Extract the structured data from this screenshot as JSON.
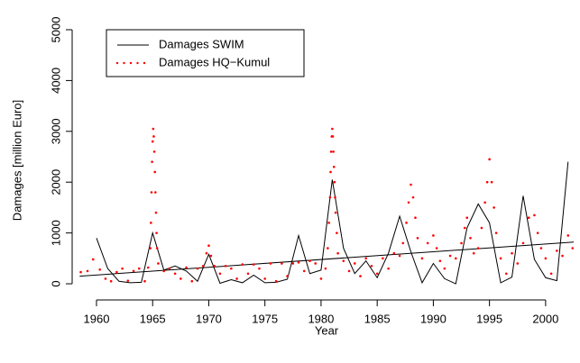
{
  "chart_data": {
    "type": "line",
    "xlabel": "Year",
    "ylabel": "Damages [million Euro]",
    "xlim": [
      1958.5,
      2002.5
    ],
    "ylim": [
      -150,
      5000
    ],
    "xticks": [
      1960,
      1965,
      1970,
      1975,
      1980,
      1985,
      1990,
      1995,
      2000
    ],
    "yticks": [
      0,
      1000,
      2000,
      3000,
      4000,
      5000
    ],
    "series": [
      {
        "name": "Damages SWIM",
        "color": "#000000",
        "style": "line",
        "x": [
          1960,
          1961,
          1962,
          1963,
          1964,
          1965,
          1966,
          1967,
          1968,
          1969,
          1970,
          1971,
          1972,
          1973,
          1974,
          1975,
          1976,
          1977,
          1978,
          1979,
          1980,
          1981,
          1982,
          1983,
          1984,
          1985,
          1986,
          1987,
          1988,
          1989,
          1990,
          1991,
          1992,
          1993,
          1994,
          1995,
          1996,
          1997,
          1998,
          1999,
          2000,
          2001,
          2002
        ],
        "values": [
          900,
          300,
          50,
          20,
          30,
          1000,
          270,
          350,
          250,
          50,
          580,
          10,
          80,
          20,
          170,
          20,
          30,
          90,
          950,
          200,
          270,
          2050,
          700,
          200,
          450,
          120,
          600,
          1330,
          630,
          20,
          400,
          100,
          0,
          1100,
          1570,
          1200,
          20,
          130,
          1730,
          480,
          120,
          60,
          2400
        ]
      },
      {
        "name": "Damages HQ−Kumul",
        "color": "#ff0000",
        "style": "points",
        "x": [
          1958.6,
          1959.2,
          1959.7,
          1960.3,
          1960.8,
          1961.3,
          1961.8,
          1962.3,
          1962.8,
          1963.3,
          1963.8,
          1964.3,
          1964.6,
          1964.8,
          1964.85,
          1964.9,
          1964.95,
          1965.0,
          1965.05,
          1965.1,
          1965.15,
          1965.2,
          1965.25,
          1965.3,
          1965.35,
          1965.4,
          1965.5,
          1966.0,
          1966.5,
          1967.0,
          1967.5,
          1968.0,
          1968.5,
          1969.0,
          1969.5,
          1969.8,
          1970.0,
          1970.2,
          1970.5,
          1971.0,
          1971.5,
          1972.0,
          1972.5,
          1973.0,
          1973.5,
          1974.0,
          1974.5,
          1975.0,
          1975.5,
          1976.0,
          1976.5,
          1977.0,
          1977.5,
          1978.0,
          1978.5,
          1979.0,
          1979.5,
          1980.0,
          1980.4,
          1980.6,
          1980.7,
          1980.8,
          1980.85,
          1980.9,
          1980.95,
          1981.0,
          1981.05,
          1981.1,
          1981.15,
          1981.2,
          1981.25,
          1981.3,
          1981.4,
          1981.5,
          1982.0,
          1982.5,
          1983.0,
          1983.5,
          1984.0,
          1984.5,
          1985.0,
          1985.5,
          1986.0,
          1986.5,
          1987.0,
          1987.3,
          1987.6,
          1987.8,
          1988.0,
          1988.2,
          1988.4,
          1988.6,
          1989.0,
          1989.5,
          1990.0,
          1990.3,
          1990.6,
          1991.0,
          1991.5,
          1992.0,
          1992.5,
          1992.8,
          1993.0,
          1993.3,
          1993.6,
          1994.0,
          1994.3,
          1994.6,
          1994.8,
          1995.0,
          1995.2,
          1995.4,
          1995.6,
          1996.0,
          1996.5,
          1997.0,
          1997.5,
          1998.0,
          1998.5,
          1999.0,
          1999.3,
          1999.6,
          2000.0,
          2000.5,
          2001.0,
          2001.5,
          2002.0,
          2002.4
        ],
        "values": [
          230,
          250,
          480,
          280,
          100,
          50,
          230,
          300,
          60,
          250,
          300,
          50,
          320,
          700,
          1200,
          1800,
          2400,
          2800,
          3050,
          2900,
          2600,
          2200,
          1800,
          1400,
          1000,
          700,
          400,
          250,
          300,
          200,
          100,
          320,
          50,
          300,
          350,
          600,
          750,
          550,
          350,
          200,
          350,
          300,
          100,
          380,
          200,
          380,
          300,
          100,
          400,
          50,
          400,
          150,
          400,
          420,
          250,
          450,
          400,
          100,
          300,
          700,
          1200,
          1700,
          2200,
          2600,
          2900,
          3050,
          2900,
          2600,
          2300,
          2000,
          1700,
          1400,
          1000,
          600,
          450,
          250,
          400,
          150,
          500,
          350,
          200,
          500,
          300,
          600,
          550,
          800,
          1200,
          1600,
          1950,
          1700,
          1300,
          900,
          500,
          800,
          950,
          700,
          450,
          300,
          550,
          500,
          800,
          1100,
          1300,
          900,
          600,
          700,
          1100,
          1600,
          2000,
          2450,
          2000,
          1500,
          1000,
          500,
          200,
          600,
          400,
          800,
          1300,
          1350,
          1000,
          700,
          500,
          200,
          650,
          550,
          950,
          700
        ]
      }
    ],
    "trend": {
      "color": "#000000",
      "x": [
        1958.5,
        2002.5
      ],
      "values": [
        150,
        820
      ]
    }
  }
}
